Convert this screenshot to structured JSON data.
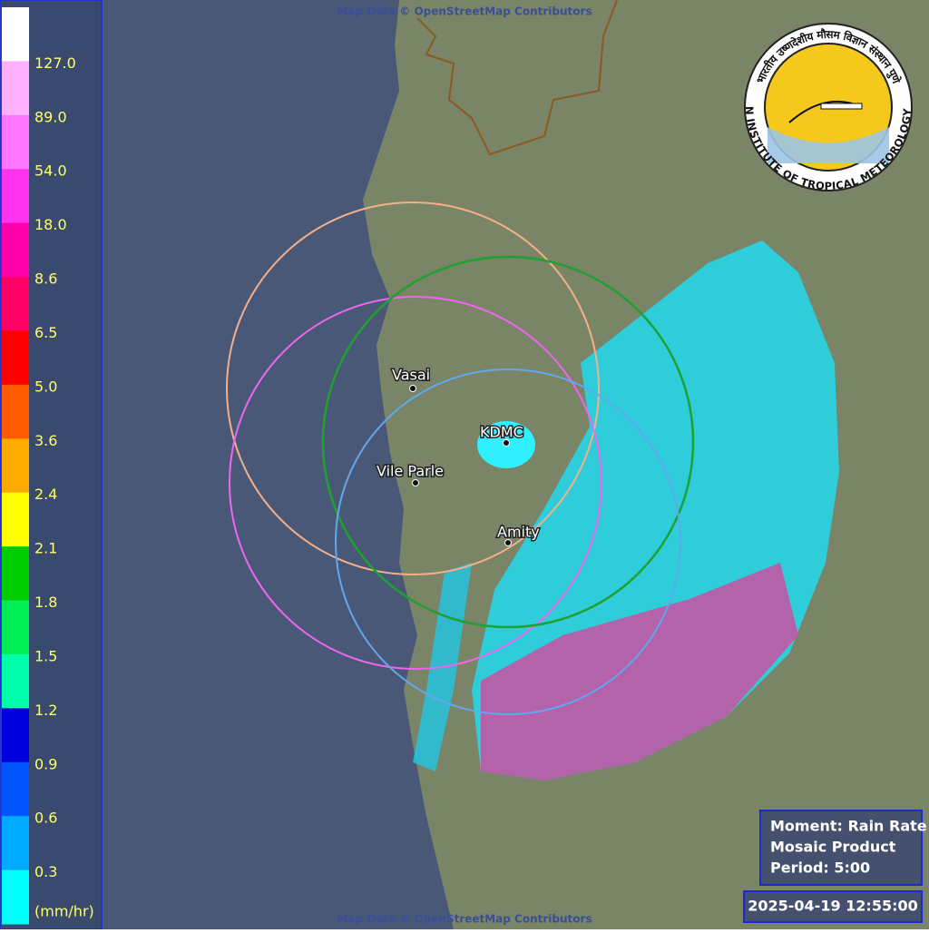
{
  "attribution_top": "Map Data © OpenStreetMap Contributors",
  "attribution_bottom": "Map Data © OpenStreetMap Contributors",
  "legend": {
    "colors": [
      "#ffffff",
      "#ffb0ff",
      "#ff77ff",
      "#ff33ee",
      "#ff00aa",
      "#ff0066",
      "#ff0000",
      "#ff5a00",
      "#ffaa00",
      "#ffff00",
      "#00cc00",
      "#00ee55",
      "#00ffaa",
      "#0000dd",
      "#0055ff",
      "#00aaff",
      "#00ffff"
    ],
    "labels": [
      "127.0",
      "89.0",
      "54.0",
      "18.0",
      "8.6",
      "6.5",
      "5.0",
      "3.6",
      "2.4",
      "2.1",
      "1.8",
      "1.5",
      "1.2",
      "0.9",
      "0.6",
      "0.3"
    ],
    "unit": "(mm/hr)"
  },
  "stations": [
    {
      "label": "Vasai"
    },
    {
      "label": "KDMC"
    },
    {
      "label": "Vile Parle"
    },
    {
      "label": "Amity"
    }
  ],
  "info": {
    "lines": [
      "Moment: Rain Rate",
      "Mosaic Product",
      "Period: 5:00"
    ]
  },
  "timestamp": "2025-04-19 12:55:00",
  "logo": {
    "ring_text": "INDIAN INSTITUTE OF TROPICAL METEOROLOGY PUNE",
    "hindi_text": "भारतीय उष्णदेशीय मौसम विज्ञान संस्थान पुणे"
  }
}
